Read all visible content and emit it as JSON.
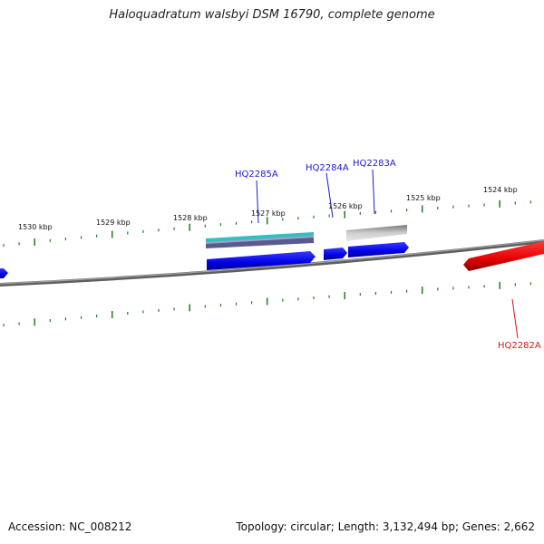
{
  "title": "Haloquadratum walsbyi DSM 16790, complete genome",
  "footer": {
    "accession": "Accession: NC_008212",
    "stats": "Topology: circular; Length: 3,132,494 bp; Genes: 2,662"
  },
  "kbp_labels": [
    "1530 kbp",
    "1529 kbp",
    "1528 kbp",
    "1527 kbp",
    "1526 kbp",
    "1525 kbp",
    "1524 kbp"
  ],
  "gene_labels": {
    "hq2285a": "HQ2285A",
    "hq2284a": "HQ2284A",
    "hq2283a": "HQ2283A",
    "hq2282a": "HQ2282A"
  },
  "colors": {
    "forward_gene": "#0000ee",
    "reverse_gene": "#ee0000",
    "tick": "#1f7a1f",
    "backbone": "#707070",
    "feature_grey": "#b8b8b8",
    "feature_teal": "#30c0c0",
    "feature_slate": "#5a5a90"
  }
}
